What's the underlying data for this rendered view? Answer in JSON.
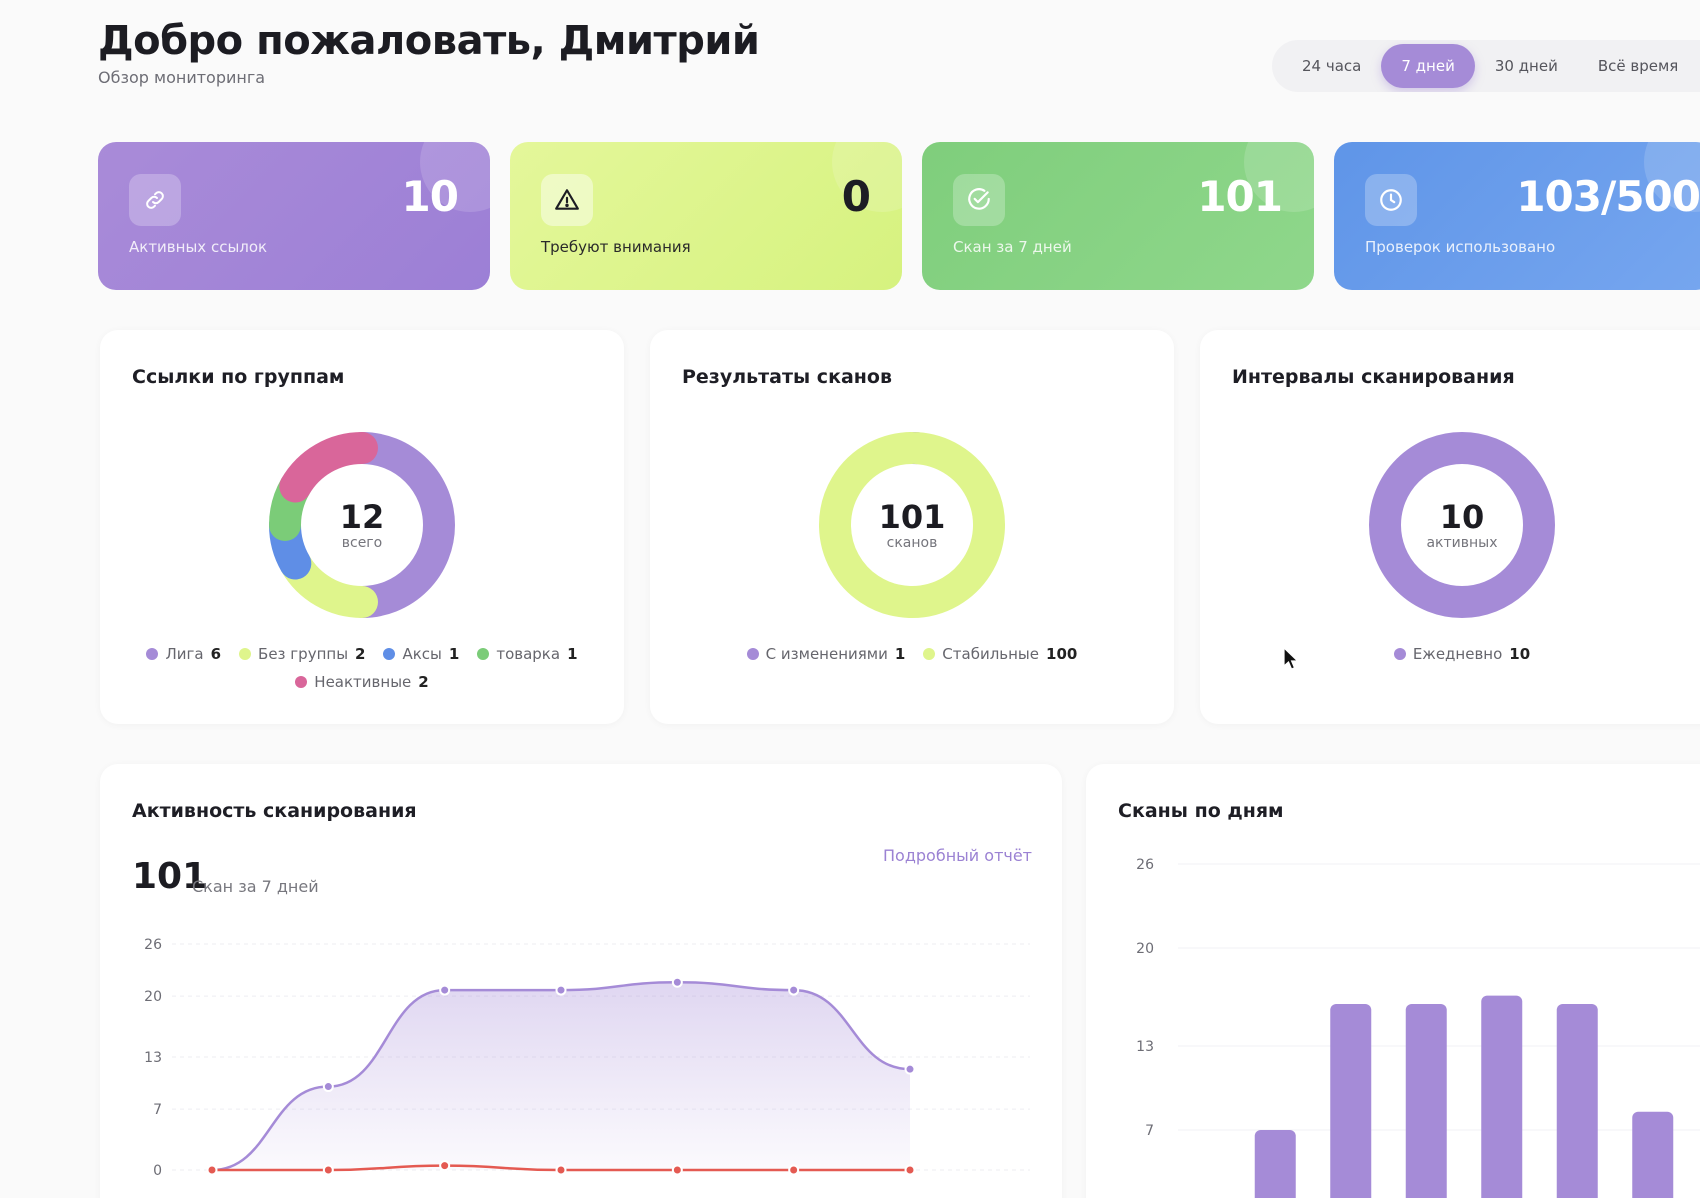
{
  "header": {
    "title": "Добро пожаловать, Дмитрий",
    "subtitle": "Обзор мониторинга"
  },
  "range_tabs": [
    {
      "label": "24 часа",
      "active": false
    },
    {
      "label": "7 дней",
      "active": true
    },
    {
      "label": "30 дней",
      "active": false
    },
    {
      "label": "Всё время",
      "active": false
    }
  ],
  "stats": [
    {
      "value": "10",
      "label": "Активных ссылок",
      "icon": "link-icon"
    },
    {
      "value": "0",
      "label": "Требуют внимания",
      "icon": "warning-icon"
    },
    {
      "value": "101",
      "label": "Скан за 7 дней",
      "icon": "check-circle-icon"
    },
    {
      "value": "103/500",
      "label": "Проверок использовано",
      "icon": "clock-icon"
    }
  ],
  "colors": {
    "purple": "#a58bd7",
    "lime": "#dff58c",
    "blue": "#5f8ee6",
    "green": "#7bcc78",
    "pink": "#d9669a",
    "red": "#e45a52"
  },
  "groups_panel": {
    "title": "Ссылки по группам",
    "total": "12",
    "caption": "всего",
    "legend": [
      {
        "name": "Лига",
        "count": "6",
        "color": "#a58bd7"
      },
      {
        "name": "Без группы",
        "count": "2",
        "color": "#dff58c"
      },
      {
        "name": "Аксы",
        "count": "1",
        "color": "#5f8ee6"
      },
      {
        "name": "товарка",
        "count": "1",
        "color": "#7bcc78"
      },
      {
        "name": "Неактивные",
        "count": "2",
        "color": "#d9669a"
      }
    ]
  },
  "scans_panel": {
    "title": "Результаты сканов",
    "total": "101",
    "caption": "сканов",
    "legend": [
      {
        "name": "С изменениями",
        "count": "1",
        "color": "#a58bd7"
      },
      {
        "name": "Стабильные",
        "count": "100",
        "color": "#dff58c"
      }
    ]
  },
  "intervals_panel": {
    "title": "Интервалы сканирования",
    "total": "10",
    "caption": "активных",
    "legend": [
      {
        "name": "Ежедневно",
        "count": "10",
        "color": "#a58bd7"
      }
    ]
  },
  "activity_panel": {
    "title": "Активность сканирования",
    "big_value": "101",
    "big_caption": "Скан за 7 дней",
    "report_link": "Подробный отчёт"
  },
  "daily_panel": {
    "title": "Сканы по дням"
  },
  "chart_data": [
    {
      "type": "line",
      "yticks": [
        "0",
        "7",
        "13",
        "20",
        "26"
      ],
      "ylim": [
        0,
        26
      ],
      "series": [
        {
          "values": [
            0,
            9.6,
            20.7,
            20.7,
            21.6,
            20.7,
            11.6
          ]
        },
        {
          "values": [
            0,
            0,
            0.5,
            0,
            0,
            0,
            0
          ]
        }
      ]
    },
    {
      "type": "bar",
      "yticks": [
        "7",
        "13",
        "20",
        "26"
      ],
      "ylim": [
        0,
        26
      ],
      "values": [
        0,
        7,
        16,
        16,
        16.6,
        16,
        8.3
      ]
    }
  ]
}
